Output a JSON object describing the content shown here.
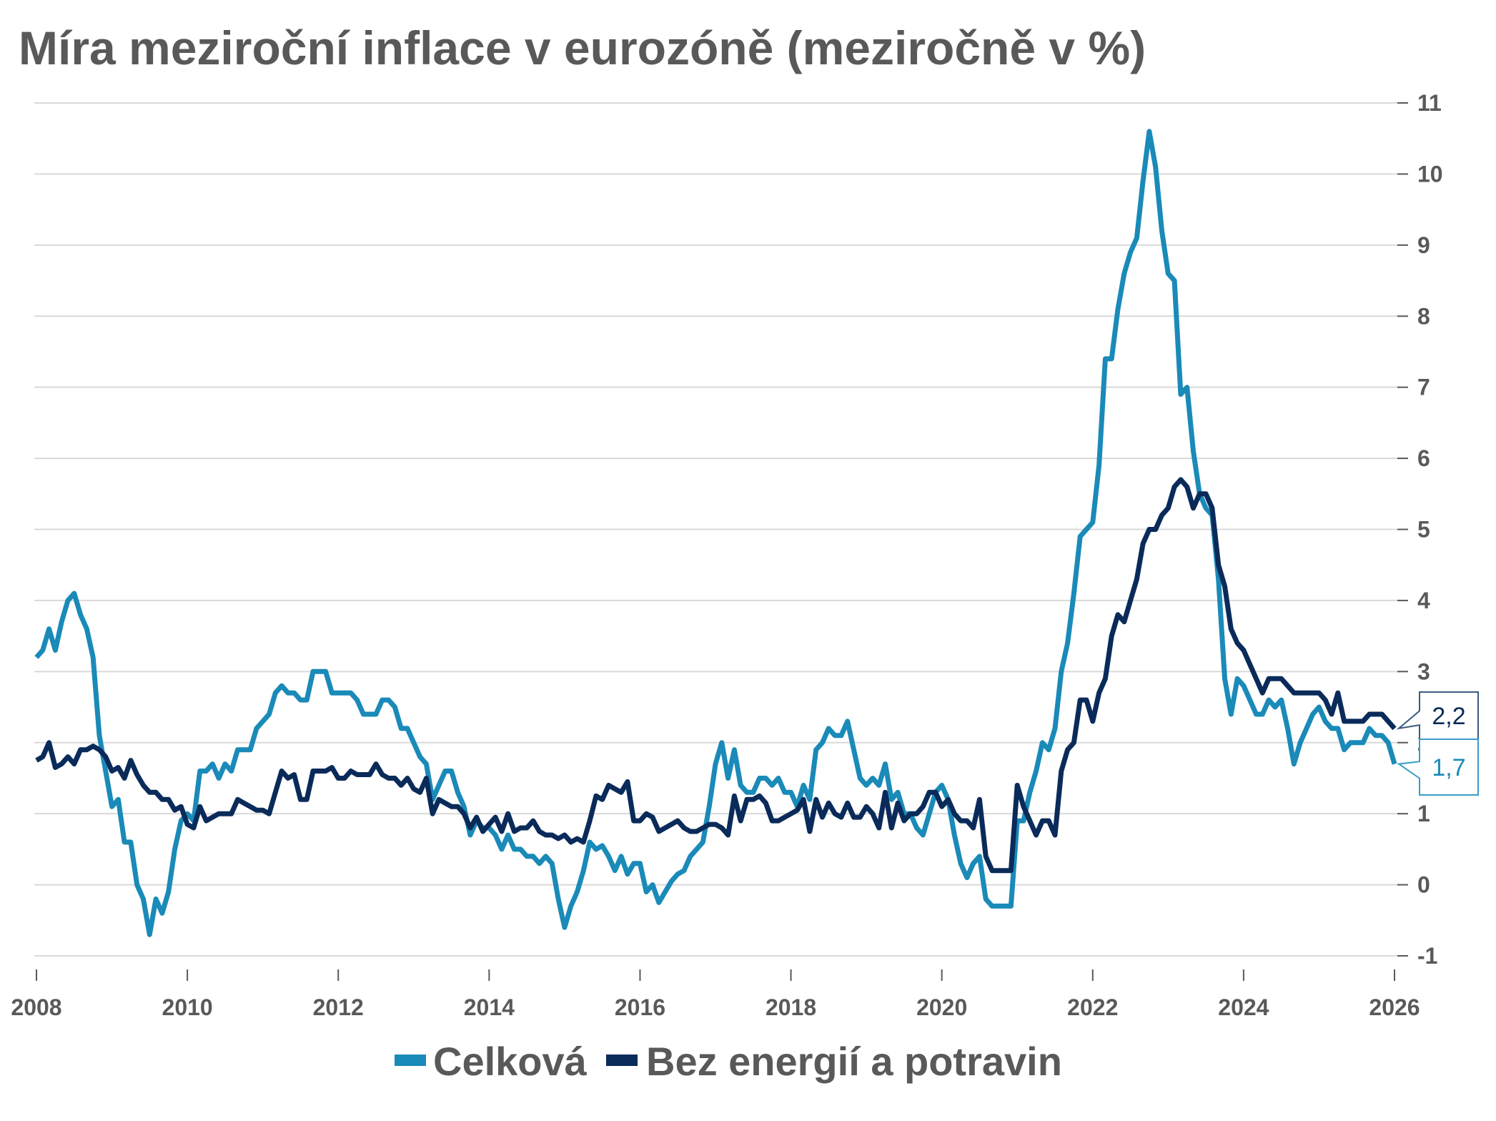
{
  "chart_data": {
    "type": "line",
    "title": "Míra meziroční inflace v eurozóně (meziročně v %)",
    "xlabel": "",
    "ylabel": "",
    "x_start": "2008-01",
    "x_frequency": "monthly",
    "xlim": [
      2008,
      2026
    ],
    "ylim": [
      -1,
      11
    ],
    "x_ticks": [
      "2008",
      "2010",
      "2012",
      "2014",
      "2016",
      "2018",
      "2020",
      "2022",
      "2024",
      "2026"
    ],
    "y_ticks": [
      "-1",
      "0",
      "1",
      "2",
      "3",
      "4",
      "5",
      "6",
      "7",
      "8",
      "9",
      "10",
      "11"
    ],
    "y_axis_side": "right",
    "grid": "horizontal",
    "legend_position": "bottom",
    "series": [
      {
        "name": "Celková",
        "color": "#1a8ab8",
        "last_label": "1,7",
        "values": [
          3.2,
          3.3,
          3.6,
          3.3,
          3.7,
          4.0,
          4.1,
          3.8,
          3.6,
          3.2,
          2.1,
          1.6,
          1.1,
          1.2,
          0.6,
          0.6,
          0.0,
          -0.2,
          -0.7,
          -0.2,
          -0.4,
          -0.1,
          0.5,
          0.9,
          1.0,
          0.9,
          1.6,
          1.6,
          1.7,
          1.5,
          1.7,
          1.6,
          1.9,
          1.9,
          1.9,
          2.2,
          2.3,
          2.4,
          2.7,
          2.8,
          2.7,
          2.7,
          2.6,
          2.6,
          3.0,
          3.0,
          3.0,
          2.7,
          2.7,
          2.7,
          2.7,
          2.6,
          2.4,
          2.4,
          2.4,
          2.6,
          2.6,
          2.5,
          2.2,
          2.2,
          2.0,
          1.8,
          1.7,
          1.2,
          1.4,
          1.6,
          1.6,
          1.3,
          1.1,
          0.7,
          0.9,
          0.8,
          0.8,
          0.7,
          0.5,
          0.7,
          0.5,
          0.5,
          0.4,
          0.4,
          0.3,
          0.4,
          0.3,
          -0.2,
          -0.6,
          -0.3,
          -0.1,
          0.2,
          0.6,
          0.5,
          0.55,
          0.4,
          0.2,
          0.4,
          0.15,
          0.3,
          0.3,
          -0.1,
          0.0,
          -0.25,
          -0.1,
          0.05,
          0.15,
          0.2,
          0.4,
          0.5,
          0.6,
          1.1,
          1.7,
          2.0,
          1.5,
          1.9,
          1.4,
          1.3,
          1.3,
          1.5,
          1.5,
          1.4,
          1.5,
          1.3,
          1.3,
          1.1,
          1.4,
          1.2,
          1.9,
          2.0,
          2.2,
          2.1,
          2.1,
          2.3,
          1.9,
          1.5,
          1.4,
          1.5,
          1.4,
          1.7,
          1.2,
          1.3,
          1.0,
          1.0,
          0.8,
          0.7,
          1.0,
          1.3,
          1.4,
          1.2,
          0.7,
          0.3,
          0.1,
          0.3,
          0.4,
          -0.2,
          -0.3,
          -0.3,
          -0.3,
          -0.3,
          0.9,
          0.9,
          1.3,
          1.6,
          2.0,
          1.9,
          2.2,
          3.0,
          3.4,
          4.1,
          4.9,
          5.0,
          5.1,
          5.9,
          7.4,
          7.4,
          8.1,
          8.6,
          8.9,
          9.1,
          9.9,
          10.6,
          10.1,
          9.2,
          8.6,
          8.5,
          6.9,
          7.0,
          6.1,
          5.5,
          5.3,
          5.2,
          4.3,
          2.9,
          2.4,
          2.9,
          2.8,
          2.6,
          2.4,
          2.4,
          2.6,
          2.5,
          2.6,
          2.2,
          1.7,
          2.0,
          2.2,
          2.4,
          2.5,
          2.3,
          2.2,
          2.2,
          1.9,
          2.0,
          2.0,
          2.0,
          2.2,
          2.1,
          2.1,
          2.0,
          1.7
        ]
      },
      {
        "name": "Bez energií a potravin",
        "color": "#0a2b5a",
        "last_label": "2,2",
        "values": [
          1.75,
          1.8,
          2.0,
          1.65,
          1.7,
          1.8,
          1.7,
          1.9,
          1.9,
          1.95,
          1.9,
          1.8,
          1.6,
          1.65,
          1.5,
          1.75,
          1.55,
          1.4,
          1.3,
          1.3,
          1.2,
          1.2,
          1.05,
          1.1,
          0.85,
          0.8,
          1.1,
          0.9,
          0.95,
          1.0,
          1.0,
          1.0,
          1.2,
          1.15,
          1.1,
          1.05,
          1.05,
          1.0,
          1.3,
          1.6,
          1.5,
          1.55,
          1.2,
          1.2,
          1.6,
          1.6,
          1.6,
          1.65,
          1.5,
          1.5,
          1.6,
          1.55,
          1.55,
          1.55,
          1.7,
          1.55,
          1.5,
          1.5,
          1.4,
          1.5,
          1.35,
          1.3,
          1.5,
          1.0,
          1.2,
          1.15,
          1.1,
          1.1,
          1.0,
          0.8,
          0.95,
          0.75,
          0.85,
          0.95,
          0.75,
          1.0,
          0.75,
          0.8,
          0.8,
          0.9,
          0.75,
          0.7,
          0.7,
          0.65,
          0.7,
          0.6,
          0.65,
          0.6,
          0.9,
          1.25,
          1.2,
          1.4,
          1.35,
          1.3,
          1.45,
          0.9,
          0.9,
          1.0,
          0.95,
          0.75,
          0.8,
          0.85,
          0.9,
          0.8,
          0.75,
          0.75,
          0.8,
          0.85,
          0.85,
          0.8,
          0.7,
          1.25,
          0.9,
          1.2,
          1.2,
          1.25,
          1.15,
          0.9,
          0.9,
          0.95,
          1.0,
          1.05,
          1.2,
          0.75,
          1.2,
          0.95,
          1.15,
          1.0,
          0.95,
          1.15,
          0.95,
          0.95,
          1.1,
          1.0,
          0.8,
          1.3,
          0.8,
          1.15,
          0.9,
          1.0,
          1.0,
          1.1,
          1.3,
          1.3,
          1.1,
          1.2,
          1.0,
          0.9,
          0.9,
          0.8,
          1.2,
          0.4,
          0.2,
          0.2,
          0.2,
          0.2,
          1.4,
          1.1,
          0.9,
          0.7,
          0.9,
          0.9,
          0.7,
          1.6,
          1.9,
          2.0,
          2.6,
          2.6,
          2.3,
          2.7,
          2.9,
          3.5,
          3.8,
          3.7,
          4.0,
          4.3,
          4.8,
          5.0,
          5.0,
          5.2,
          5.3,
          5.6,
          5.7,
          5.6,
          5.3,
          5.5,
          5.5,
          5.3,
          4.5,
          4.2,
          3.6,
          3.4,
          3.3,
          3.1,
          2.9,
          2.7,
          2.9,
          2.9,
          2.9,
          2.8,
          2.7,
          2.7,
          2.7,
          2.7,
          2.7,
          2.6,
          2.4,
          2.7,
          2.3,
          2.3,
          2.3,
          2.3,
          2.4,
          2.4,
          2.4,
          2.3,
          2.2
        ]
      }
    ]
  }
}
